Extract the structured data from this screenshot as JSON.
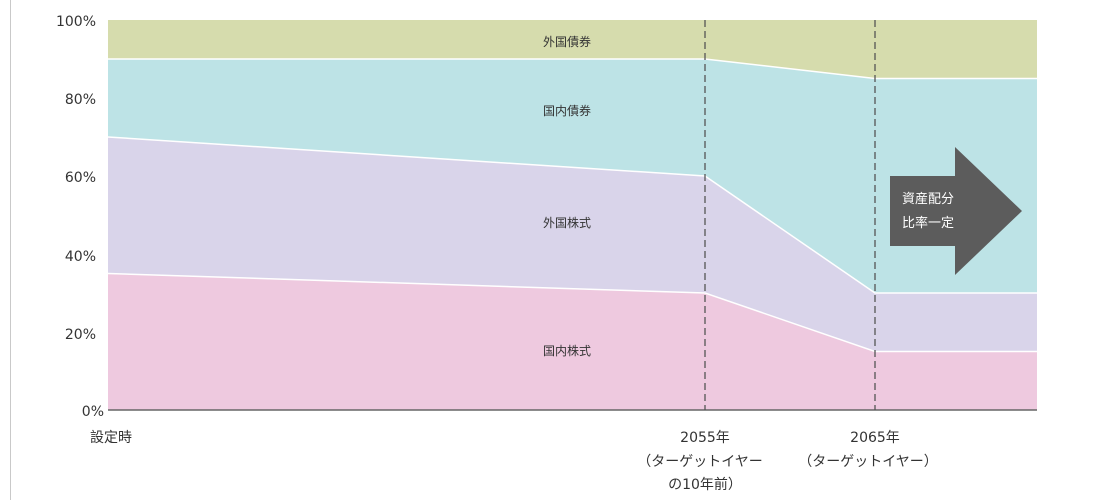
{
  "chart_data": {
    "type": "area",
    "stacked": true,
    "categories": [
      "設定時",
      "2055年",
      "2065年"
    ],
    "category_sublabels": [
      [],
      [
        "（ターゲットイヤー",
        "の10年前）"
      ],
      [
        "（ターゲットイヤー）"
      ]
    ],
    "series": [
      {
        "name": "国内株式",
        "values": [
          35,
          30,
          15
        ],
        "color": "#eec9df"
      },
      {
        "name": "外国株式",
        "values": [
          35,
          30,
          15
        ],
        "color": "#d9d4ea"
      },
      {
        "name": "国内債券",
        "values": [
          20,
          30,
          55
        ],
        "color": "#bde3e6"
      },
      {
        "name": "外国債券",
        "values": [
          10,
          10,
          15
        ],
        "color": "#d6dcad"
      }
    ],
    "yticks": [
      "100%",
      "80%",
      "60%",
      "40%",
      "20%",
      "0%"
    ],
    "ylim": [
      0,
      100
    ],
    "grid": false,
    "annotation": [
      "資産配分",
      "比率一定"
    ]
  },
  "colors": {
    "arrow": "#5c5c5c",
    "divider": "#555555"
  }
}
